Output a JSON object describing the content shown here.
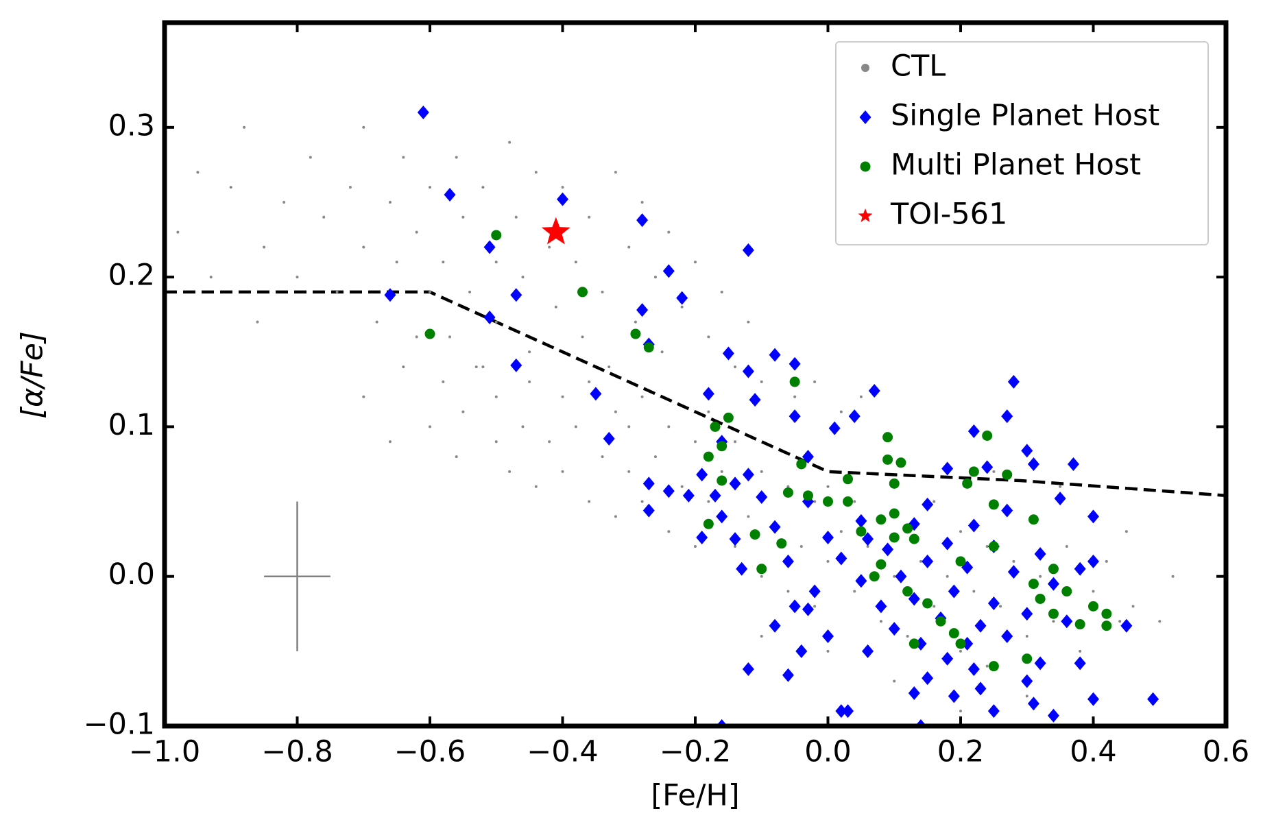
{
  "chart_data": {
    "type": "scatter",
    "xlabel": "[Fe/H]",
    "ylabel": "[α/Fe]",
    "xlim": [
      -1.0,
      0.6
    ],
    "ylim": [
      -0.1,
      0.37
    ],
    "xticks": [
      {
        "value": -1.0,
        "label": "−1.0"
      },
      {
        "value": -0.8,
        "label": "−0.8"
      },
      {
        "value": -0.6,
        "label": "−0.6"
      },
      {
        "value": -0.4,
        "label": "−0.4"
      },
      {
        "value": -0.2,
        "label": "−0.2"
      },
      {
        "value": 0,
        "label": "0.0"
      },
      0.2,
      0.4,
      0.6
    ],
    "yticks": [
      {
        "value": -0.1,
        "label": "−0.1"
      },
      {
        "value": 0,
        "label": "0.0"
      },
      0.1,
      0.2,
      0.3
    ],
    "legend": "upper right",
    "series": [
      {
        "name": "CTL",
        "color": "#888888",
        "marker": "dot",
        "x": [
          -0.95,
          -0.9,
          -0.88,
          -0.85,
          -0.82,
          -0.8,
          -0.78,
          -0.76,
          -0.74,
          -0.72,
          -0.7,
          -0.7,
          -0.68,
          -0.66,
          -0.65,
          -0.64,
          -0.62,
          -0.6,
          -0.6,
          -0.58,
          -0.57,
          -0.56,
          -0.55,
          -0.54,
          -0.53,
          -0.52,
          -0.5,
          -0.5,
          -0.48,
          -0.47,
          -0.46,
          -0.45,
          -0.44,
          -0.42,
          -0.41,
          -0.4,
          -0.38,
          -0.37,
          -0.36,
          -0.34,
          -0.33,
          -0.32,
          -0.3,
          -0.29,
          -0.28,
          -0.26,
          -0.25,
          -0.24,
          -0.22,
          -0.2,
          -0.18,
          -0.16,
          -0.14,
          -0.12,
          -0.1,
          -0.08,
          -0.05,
          -0.02,
          0.02,
          0.05,
          -0.98,
          -0.93,
          -0.86,
          -0.64,
          -0.6,
          -0.58,
          -0.56,
          -0.55,
          -0.52,
          -0.5,
          -0.5,
          -0.48,
          -0.46,
          -0.45,
          -0.44,
          -0.42,
          -0.4,
          -0.4,
          -0.38,
          -0.36,
          -0.36,
          -0.34,
          -0.32,
          -0.32,
          -0.3,
          -0.3,
          -0.28,
          -0.28,
          -0.26,
          -0.24,
          -0.24,
          -0.22,
          -0.2,
          -0.2,
          -0.18,
          -0.18,
          -0.16,
          -0.14,
          -0.14,
          -0.12,
          -0.1,
          -0.1,
          -0.08,
          -0.06,
          -0.06,
          -0.04,
          -0.02,
          -0.02,
          0.0,
          0.0,
          0.02,
          0.04,
          0.04,
          0.06,
          0.08,
          0.08,
          0.1,
          0.12,
          0.12,
          0.14,
          0.16,
          0.16,
          0.18,
          0.2,
          0.2,
          0.22,
          0.24,
          0.24,
          0.26,
          0.28,
          0.3,
          0.32,
          0.34,
          0.36,
          0.38,
          0.4,
          0.42,
          0.44,
          0.46,
          0.5,
          0.52,
          0.3,
          0.1,
          0.0,
          -0.1,
          0.2,
          -0.7,
          -0.66,
          -0.62,
          0.35,
          0.25,
          0.45
        ],
        "y": [
          0.27,
          0.26,
          0.3,
          0.22,
          0.25,
          0.2,
          0.28,
          0.24,
          0.19,
          0.26,
          0.22,
          0.3,
          0.17,
          0.25,
          0.21,
          0.28,
          0.23,
          0.19,
          0.26,
          0.21,
          0.16,
          0.28,
          0.24,
          0.19,
          0.14,
          0.26,
          0.21,
          0.17,
          0.29,
          0.24,
          0.2,
          0.15,
          0.27,
          0.22,
          0.18,
          0.26,
          0.21,
          0.16,
          0.24,
          0.19,
          0.14,
          0.27,
          0.22,
          0.17,
          0.25,
          0.2,
          0.15,
          0.23,
          0.18,
          0.21,
          0.16,
          0.19,
          0.14,
          0.17,
          0.13,
          0.15,
          0.12,
          0.13,
          0.11,
          0.12,
          0.23,
          0.2,
          0.17,
          0.14,
          0.1,
          0.13,
          0.08,
          0.11,
          0.14,
          0.09,
          0.12,
          0.07,
          0.1,
          0.13,
          0.06,
          0.09,
          0.12,
          0.07,
          0.1,
          0.05,
          0.13,
          0.08,
          0.11,
          0.04,
          0.07,
          0.1,
          0.05,
          0.12,
          0.08,
          0.03,
          0.1,
          0.06,
          0.09,
          0.02,
          0.05,
          0.11,
          0.07,
          0.02,
          0.09,
          0.04,
          0.07,
          0.0,
          0.03,
          0.06,
          -0.01,
          0.02,
          0.05,
          -0.02,
          0.01,
          0.06,
          0.03,
          -0.01,
          0.05,
          0.02,
          -0.03,
          0.04,
          0.0,
          0.03,
          -0.04,
          0.01,
          -0.02,
          0.05,
          0.0,
          -0.05,
          0.03,
          -0.01,
          0.02,
          -0.06,
          -0.02,
          0.01,
          -0.04,
          0.0,
          -0.03,
          0.02,
          -0.05,
          -0.01,
          0.01,
          -0.03,
          -0.02,
          -0.03,
          0.0,
          -0.08,
          -0.07,
          -0.05,
          -0.04,
          -0.09,
          0.12,
          0.09,
          0.16,
          0.06,
          0.07,
          0.03
        ]
      },
      {
        "name": "Single Planet Host",
        "color": "#0000ff",
        "marker": "diamond",
        "x": [
          -0.61,
          -0.57,
          -0.4,
          -0.28,
          -0.51,
          -0.12,
          -0.24,
          -0.47,
          -0.66,
          -0.22,
          -0.28,
          -0.51,
          -0.27,
          -0.15,
          -0.08,
          -0.05,
          -0.47,
          -0.12,
          0.28,
          0.07,
          -0.35,
          -0.18,
          -0.11,
          0.27,
          0.04,
          -0.05,
          0.01,
          0.22,
          -0.33,
          -0.16,
          -0.03,
          0.3,
          0.31,
          0.37,
          0.24,
          0.18,
          -0.19,
          -0.12,
          -0.27,
          -0.14,
          -0.24,
          -0.21,
          0.35,
          -0.17,
          -0.1,
          -0.03,
          0.15,
          0.27,
          -0.27,
          -0.16,
          0.4,
          0.05,
          0.13,
          0.22,
          -0.08,
          -0.19,
          -0.14,
          0.0,
          0.06,
          0.18,
          0.25,
          0.09,
          0.32,
          0.02,
          0.15,
          0.4,
          0.38,
          -0.06,
          -0.13,
          0.21,
          0.28,
          0.11,
          0.05,
          0.34,
          0.19,
          -0.02,
          0.13,
          0.25,
          0.08,
          -0.03,
          -0.05,
          0.3,
          0.17,
          0.36,
          0.23,
          -0.08,
          0.1,
          0.45,
          0.27,
          0.0,
          0.14,
          0.21,
          -0.04,
          0.06,
          0.18,
          0.32,
          0.38,
          0.22,
          -0.12,
          -0.06,
          0.15,
          0.3,
          0.23,
          0.13,
          0.19,
          0.4,
          0.49,
          0.31,
          0.25,
          0.34,
          0.02,
          0.03,
          -0.16,
          0.14
        ],
        "y": [
          0.31,
          0.255,
          0.252,
          0.238,
          0.22,
          0.218,
          0.204,
          0.188,
          0.188,
          0.186,
          0.178,
          0.173,
          0.155,
          0.149,
          0.148,
          0.142,
          0.141,
          0.137,
          0.13,
          0.124,
          0.122,
          0.122,
          0.118,
          0.107,
          0.107,
          0.107,
          0.099,
          0.097,
          0.092,
          0.09,
          0.08,
          0.084,
          0.075,
          0.075,
          0.073,
          0.072,
          0.068,
          0.068,
          0.062,
          0.062,
          0.057,
          0.054,
          0.052,
          0.054,
          0.053,
          0.05,
          0.048,
          0.044,
          0.044,
          0.04,
          0.04,
          0.037,
          0.035,
          0.034,
          0.033,
          0.026,
          0.025,
          0.026,
          0.025,
          0.022,
          0.02,
          0.018,
          0.015,
          0.012,
          0.01,
          0.01,
          0.005,
          0.01,
          0.005,
          0.006,
          0.003,
          0.0,
          -0.003,
          -0.005,
          -0.01,
          -0.01,
          -0.015,
          -0.018,
          -0.02,
          -0.022,
          -0.02,
          -0.025,
          -0.028,
          -0.03,
          -0.033,
          -0.033,
          -0.035,
          -0.033,
          -0.04,
          -0.04,
          -0.045,
          -0.045,
          -0.05,
          -0.05,
          -0.055,
          -0.058,
          -0.058,
          -0.062,
          -0.062,
          -0.066,
          -0.068,
          -0.07,
          -0.075,
          -0.078,
          -0.08,
          -0.082,
          -0.082,
          -0.085,
          -0.09,
          -0.093,
          -0.09,
          -0.09,
          -0.1,
          -0.1
        ]
      },
      {
        "name": "Multi Planet Host",
        "color": "#008000",
        "marker": "circle",
        "x": [
          -0.5,
          -0.37,
          -0.6,
          -0.29,
          -0.27,
          -0.05,
          0.24,
          -0.15,
          -0.17,
          0.09,
          -0.16,
          -0.18,
          0.09,
          -0.04,
          0.11,
          0.22,
          0.27,
          -0.16,
          0.03,
          0.1,
          0.21,
          -0.06,
          -0.03,
          0.03,
          0.0,
          0.25,
          0.1,
          0.08,
          0.31,
          -0.18,
          0.12,
          0.05,
          -0.11,
          0.1,
          -0.07,
          0.13,
          0.25,
          0.2,
          0.08,
          -0.1,
          0.07,
          0.34,
          0.31,
          0.12,
          0.36,
          0.32,
          0.15,
          0.4,
          0.34,
          0.42,
          0.38,
          0.17,
          0.42,
          0.19,
          0.13,
          0.2,
          0.3,
          0.25
        ],
        "y": [
          0.228,
          0.19,
          0.162,
          0.162,
          0.153,
          0.13,
          0.094,
          0.106,
          0.1,
          0.093,
          0.087,
          0.08,
          0.078,
          0.075,
          0.076,
          0.07,
          0.068,
          0.064,
          0.065,
          0.062,
          0.062,
          0.056,
          0.054,
          0.05,
          0.05,
          0.048,
          0.042,
          0.038,
          0.038,
          0.035,
          0.032,
          0.03,
          0.028,
          0.026,
          0.022,
          0.025,
          0.02,
          0.01,
          0.008,
          0.005,
          0.0,
          0.005,
          -0.005,
          -0.01,
          -0.01,
          -0.015,
          -0.018,
          -0.02,
          -0.025,
          -0.025,
          -0.032,
          -0.03,
          -0.033,
          -0.038,
          -0.045,
          -0.045,
          -0.055,
          -0.06
        ]
      },
      {
        "name": "TOI-561",
        "color": "#ff0000",
        "marker": "star",
        "x": [
          -0.41
        ],
        "y": [
          0.23
        ]
      }
    ],
    "dividing_line": {
      "color": "#000000",
      "style": "dashed",
      "x": [
        -1.0,
        -0.6,
        0.0,
        0.29,
        0.6
      ],
      "y": [
        0.19,
        0.19,
        0.07,
        0.064,
        0.054
      ]
    },
    "error_cross": {
      "color": "#808080",
      "x": -0.8,
      "y": 0,
      "xerr": 0.05,
      "yerr": 0.05
    }
  }
}
